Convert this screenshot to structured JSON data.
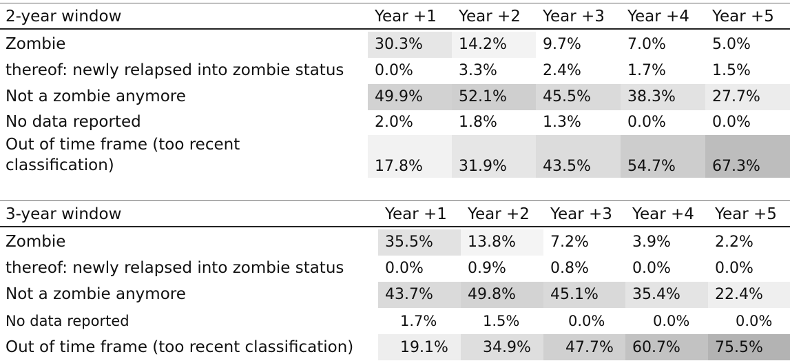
{
  "tables": [
    {
      "title": "2-year window",
      "headers": [
        "Year +1",
        "Year +2",
        "Year +3",
        "Year +4",
        "Year +5"
      ],
      "rows": [
        {
          "label": "Zombie",
          "values": [
            "30.3%",
            "14.2%",
            "9.7%",
            "7.0%",
            "5.0%"
          ],
          "shades": [
            "#e6e6e6",
            "#f3f3f3",
            "#ffffff",
            "#ffffff",
            "#ffffff"
          ]
        },
        {
          "label": "thereof: newly relapsed into zombie status",
          "values": [
            "0.0%",
            "3.3%",
            "2.4%",
            "1.7%",
            "1.5%"
          ],
          "shades": [
            "#ffffff",
            "#ffffff",
            "#ffffff",
            "#ffffff",
            "#ffffff"
          ]
        },
        {
          "label": "Not a zombie anymore",
          "values": [
            "49.9%",
            "52.1%",
            "45.5%",
            "38.3%",
            "27.7%"
          ],
          "shades": [
            "#d2d2d2",
            "#cfcfcf",
            "#dadada",
            "#e2e2e2",
            "#ececec"
          ]
        },
        {
          "label": "No data reported",
          "values": [
            "2.0%",
            "1.8%",
            "1.3%",
            "0.0%",
            "0.0%"
          ],
          "shades": [
            "#ffffff",
            "#ffffff",
            "#ffffff",
            "#ffffff",
            "#ffffff"
          ]
        },
        {
          "label": "Out of time frame (too recent classification)",
          "values": [
            "17.8%",
            "31.9%",
            "43.5%",
            "54.7%",
            "67.3%"
          ],
          "shades": [
            "#f2f2f2",
            "#e6e6e6",
            "#dcdcdc",
            "#cdcdcd",
            "#bdbdbd"
          ]
        }
      ]
    },
    {
      "title": "3-year window",
      "headers": [
        "Year +1",
        "Year +2",
        "Year +3",
        "Year +4",
        "Year +5"
      ],
      "rows": [
        {
          "label": "Zombie",
          "values": [
            "35.5%",
            "13.8%",
            "7.2%",
            "3.9%",
            "2.2%"
          ],
          "shades": [
            "#e2e2e2",
            "#f4f4f4",
            "#ffffff",
            "#ffffff",
            "#ffffff"
          ]
        },
        {
          "label": "thereof: newly relapsed into zombie status",
          "values": [
            "0.0%",
            "0.9%",
            "0.8%",
            "0.0%",
            "0.0%"
          ],
          "shades": [
            "#ffffff",
            "#ffffff",
            "#ffffff",
            "#ffffff",
            "#ffffff"
          ]
        },
        {
          "label": "Not a zombie anymore",
          "values": [
            "43.7%",
            "49.8%",
            "45.1%",
            "35.4%",
            "22.4%"
          ],
          "shades": [
            "#dadada",
            "#d3d3d3",
            "#d9d9d9",
            "#e4e4e4",
            "#efefef"
          ]
        },
        {
          "label": "No data reported",
          "values": [
            "1.7%",
            "1.5%",
            "0.0%",
            "0.0%",
            "0.0%"
          ],
          "shades": [
            "#ffffff",
            "#ffffff",
            "#ffffff",
            "#ffffff",
            "#ffffff"
          ]
        },
        {
          "label": "Out of time frame (too recent classification)",
          "values": [
            "19.1%",
            "34.9%",
            "47.7%",
            "60.7%",
            "75.5%"
          ],
          "shades": [
            "#eeeeee",
            "#dedede",
            "#d0d0d0",
            "#c2c2c2",
            "#b3b3b3"
          ]
        }
      ]
    }
  ]
}
